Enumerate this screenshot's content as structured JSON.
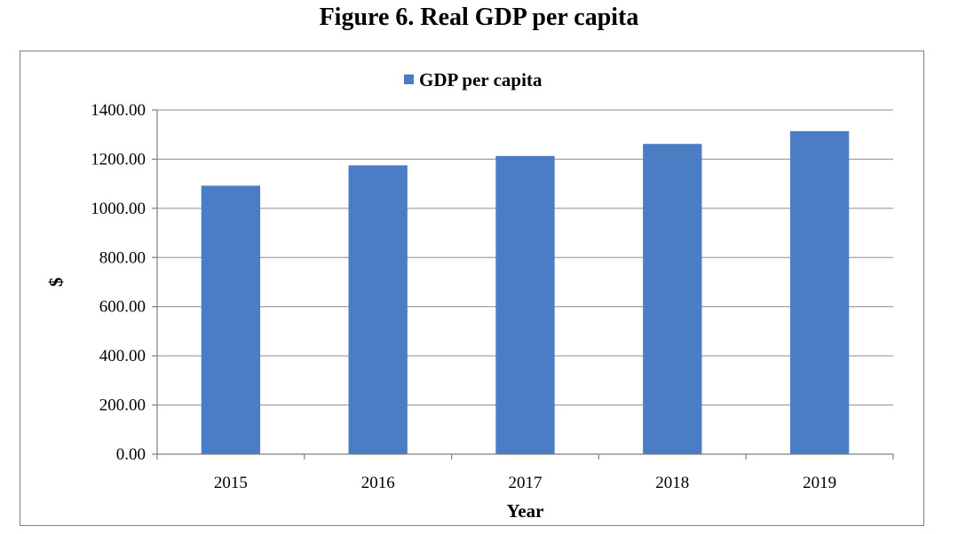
{
  "figure": {
    "title": "Figure 6. Real GDP per capita"
  },
  "chart_data": {
    "type": "bar",
    "title": "Figure 6. Real GDP per capita",
    "categories": [
      "2015",
      "2016",
      "2017",
      "2018",
      "2019"
    ],
    "series": [
      {
        "name": "GDP per capita",
        "values": [
          1092,
          1175,
          1213,
          1262,
          1314
        ],
        "color": "#4a7dc4"
      }
    ],
    "xlabel": "Year",
    "ylabel": "$",
    "ylim": [
      0,
      1400
    ],
    "yticks": [
      "0.00",
      "200.00",
      "400.00",
      "600.00",
      "800.00",
      "1000.00",
      "1200.00",
      "1400.00"
    ],
    "grid": true,
    "legend_position": "top-center"
  }
}
